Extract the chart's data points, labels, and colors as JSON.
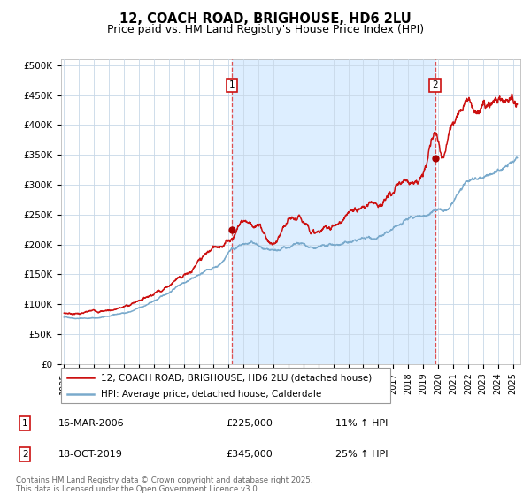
{
  "title": "12, COACH ROAD, BRIGHOUSE, HD6 2LU",
  "subtitle": "Price paid vs. HM Land Registry's House Price Index (HPI)",
  "title_fontsize": 10.5,
  "subtitle_fontsize": 9,
  "background_color": "#ffffff",
  "plot_bg_color": "#ffffff",
  "grid_color": "#c8d8e8",
  "shaded_region_color": "#ddeeff",
  "line1_color": "#cc1111",
  "line2_color": "#7aaacc",
  "marker_color": "#aa0000",
  "vline_color": "#dd3333",
  "annotation_box_edgecolor": "#cc1111",
  "yticks": [
    0,
    50000,
    100000,
    150000,
    200000,
    250000,
    300000,
    350000,
    400000,
    450000,
    500000
  ],
  "ytick_labels": [
    "£0",
    "£50K",
    "£100K",
    "£150K",
    "£200K",
    "£250K",
    "£300K",
    "£350K",
    "£400K",
    "£450K",
    "£500K"
  ],
  "xmin": 1994.8,
  "xmax": 2025.5,
  "ymin": 0,
  "ymax": 510000,
  "event1_x": 2006.21,
  "event1_y": 225000,
  "event1_label": "1",
  "event1_date": "16-MAR-2006",
  "event1_price": "£225,000",
  "event1_hpi": "11% ↑ HPI",
  "event2_x": 2019.8,
  "event2_y": 345000,
  "event2_label": "2",
  "event2_date": "18-OCT-2019",
  "event2_price": "£345,000",
  "event2_hpi": "25% ↑ HPI",
  "legend1_label": "12, COACH ROAD, BRIGHOUSE, HD6 2LU (detached house)",
  "legend2_label": "HPI: Average price, detached house, Calderdale",
  "footer_text": "Contains HM Land Registry data © Crown copyright and database right 2025.\nThis data is licensed under the Open Government Licence v3.0."
}
